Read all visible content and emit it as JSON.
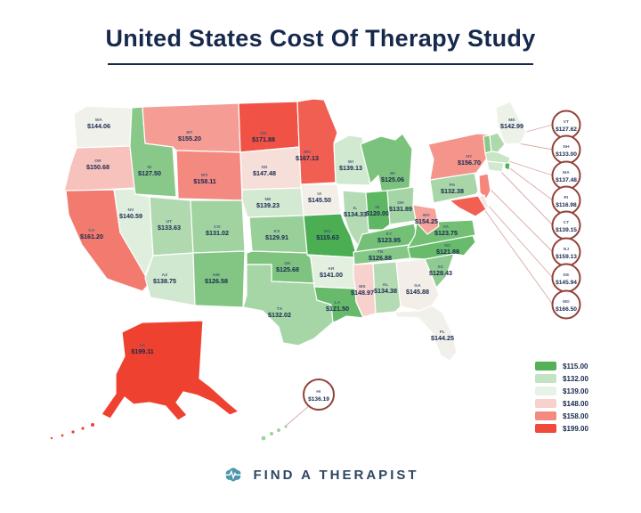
{
  "title": "United States Cost Of Therapy Study",
  "footer": {
    "brand": "FIND A THERAPIST"
  },
  "legend": {
    "items": [
      {
        "label": "$115.00",
        "color": "#55b158"
      },
      {
        "label": "$132.00",
        "color": "#c3e3c3"
      },
      {
        "label": "$139.00",
        "color": "#e9f2e8"
      },
      {
        "label": "$148.00",
        "color": "#f8d0cc"
      },
      {
        "label": "$158.00",
        "color": "#f3897f"
      },
      {
        "label": "$199.00",
        "color": "#f04a3c"
      }
    ]
  },
  "map": {
    "circle_border_color": "#944038",
    "states": [
      {
        "abbr": "WA",
        "value": "$144.06",
        "fill": "#f1f1eb"
      },
      {
        "abbr": "OR",
        "value": "$150.68",
        "fill": "#f7c2bc"
      },
      {
        "abbr": "CA",
        "value": "$161.20",
        "fill": "#f37a6f"
      },
      {
        "abbr": "NV",
        "value": "$140.59",
        "fill": "#e0efdd"
      },
      {
        "abbr": "ID",
        "value": "$127.50",
        "fill": "#88c989"
      },
      {
        "abbr": "MT",
        "value": "$155.20",
        "fill": "#f59d95"
      },
      {
        "abbr": "WY",
        "value": "$158.11",
        "fill": "#f48980"
      },
      {
        "abbr": "UT",
        "value": "$133.63",
        "fill": "#b0d9af"
      },
      {
        "abbr": "CO",
        "value": "$131.02",
        "fill": "#a0d3a0"
      },
      {
        "abbr": "AZ",
        "value": "$138.75",
        "fill": "#d0e8cf"
      },
      {
        "abbr": "NM",
        "value": "$126.58",
        "fill": "#83c684"
      },
      {
        "abbr": "ND",
        "value": "$171.88",
        "fill": "#f05246"
      },
      {
        "abbr": "SD",
        "value": "$147.48",
        "fill": "#f6ded9"
      },
      {
        "abbr": "NE",
        "value": "$139.23",
        "fill": "#d3e9d2"
      },
      {
        "abbr": "KS",
        "value": "$129.91",
        "fill": "#99d099"
      },
      {
        "abbr": "OK",
        "value": "$125.68",
        "fill": "#7ec47f"
      },
      {
        "abbr": "TX",
        "value": "$132.02",
        "fill": "#a6d5a6"
      },
      {
        "abbr": "MN",
        "value": "$167.13",
        "fill": "#f15e52"
      },
      {
        "abbr": "IA",
        "value": "$145.50",
        "fill": "#f3efe8"
      },
      {
        "abbr": "MO",
        "value": "$115.63",
        "fill": "#4bae53"
      },
      {
        "abbr": "AR",
        "value": "$141.00",
        "fill": "#e3f0e0"
      },
      {
        "abbr": "LA",
        "value": "$121.50",
        "fill": "#66ba69"
      },
      {
        "abbr": "WI",
        "value": "$139.13",
        "fill": "#d2e9d1"
      },
      {
        "abbr": "MI",
        "value": "$125.06",
        "fill": "#7bc37d"
      },
      {
        "abbr": "IL",
        "value": "$134.33",
        "fill": "#b4dbb3"
      },
      {
        "abbr": "IN",
        "value": "$120.00",
        "fill": "#5eb763"
      },
      {
        "abbr": "OH",
        "value": "$131.89",
        "fill": "#a5d5a5"
      },
      {
        "abbr": "KY",
        "value": "$123.95",
        "fill": "#74c076"
      },
      {
        "abbr": "TN",
        "value": "$126.88",
        "fill": "#85c786"
      },
      {
        "abbr": "MS",
        "value": "$148.97",
        "fill": "#f8d1cd"
      },
      {
        "abbr": "AL",
        "value": "$134.38",
        "fill": "#b4dbb3"
      },
      {
        "abbr": "GA",
        "value": "$145.88",
        "fill": "#f3eee7"
      },
      {
        "abbr": "FL",
        "value": "$144.25",
        "fill": "#f1f0ea"
      },
      {
        "abbr": "SC",
        "value": "$128.43",
        "fill": "#8fcb90"
      },
      {
        "abbr": "NC",
        "value": "$121.88",
        "fill": "#67bb6a"
      },
      {
        "abbr": "VA",
        "value": "$123.75",
        "fill": "#73c075"
      },
      {
        "abbr": "WV",
        "value": "$154.25",
        "fill": "#f5a39b"
      },
      {
        "abbr": "PA",
        "value": "$132.38",
        "fill": "#a8d6a8"
      },
      {
        "abbr": "NY",
        "value": "$156.70",
        "fill": "#f4948b"
      },
      {
        "abbr": "ME",
        "value": "$142.99",
        "fill": "#edf2e8"
      },
      {
        "abbr": "AK",
        "value": "$199.11",
        "fill": "#ef4130"
      }
    ],
    "callouts": [
      {
        "abbr": "VT",
        "value": "$127.62",
        "fill": "#88c989"
      },
      {
        "abbr": "NH",
        "value": "$133.00",
        "fill": "#add9ac"
      },
      {
        "abbr": "MA",
        "value": "$137.48",
        "fill": "#c8e5c6"
      },
      {
        "abbr": "RI",
        "value": "$116.98",
        "fill": "#4fb057"
      },
      {
        "abbr": "CT",
        "value": "$139.15",
        "fill": "#d2e9d1"
      },
      {
        "abbr": "NJ",
        "value": "$159.13",
        "fill": "#f4867c"
      },
      {
        "abbr": "DE",
        "value": "$145.94",
        "fill": "#f3e9e3"
      },
      {
        "abbr": "MD",
        "value": "$166.50",
        "fill": "#f25f53"
      },
      {
        "abbr": "HI",
        "value": "$136.19",
        "fill": "#9dd49c"
      }
    ]
  },
  "chart_data": {
    "type": "heatmap",
    "subtype": "us-choropleth",
    "title": "United States Cost Of Therapy Study",
    "legend_breaks": [
      115.0,
      132.0,
      139.0,
      148.0,
      158.0,
      199.0
    ],
    "legend_colors": [
      "#55b158",
      "#c3e3c3",
      "#e9f2e8",
      "#f8d0cc",
      "#f3897f",
      "#f04a3c"
    ],
    "states": [
      {
        "state": "WA",
        "cost": 144.06
      },
      {
        "state": "OR",
        "cost": 150.68
      },
      {
        "state": "CA",
        "cost": 161.2
      },
      {
        "state": "NV",
        "cost": 140.59
      },
      {
        "state": "ID",
        "cost": 127.5
      },
      {
        "state": "MT",
        "cost": 155.2
      },
      {
        "state": "WY",
        "cost": 158.11
      },
      {
        "state": "UT",
        "cost": 133.63
      },
      {
        "state": "CO",
        "cost": 131.02
      },
      {
        "state": "AZ",
        "cost": 138.75
      },
      {
        "state": "NM",
        "cost": 126.58
      },
      {
        "state": "ND",
        "cost": 171.88
      },
      {
        "state": "SD",
        "cost": 147.48
      },
      {
        "state": "NE",
        "cost": 139.23
      },
      {
        "state": "KS",
        "cost": 129.91
      },
      {
        "state": "OK",
        "cost": 125.68
      },
      {
        "state": "TX",
        "cost": 132.02
      },
      {
        "state": "MN",
        "cost": 167.13
      },
      {
        "state": "IA",
        "cost": 145.5
      },
      {
        "state": "MO",
        "cost": 115.63
      },
      {
        "state": "AR",
        "cost": 141.0
      },
      {
        "state": "LA",
        "cost": 121.5
      },
      {
        "state": "WI",
        "cost": 139.13
      },
      {
        "state": "MI",
        "cost": 125.06
      },
      {
        "state": "IL",
        "cost": 134.33
      },
      {
        "state": "IN",
        "cost": 120.0
      },
      {
        "state": "OH",
        "cost": 131.89
      },
      {
        "state": "KY",
        "cost": 123.95
      },
      {
        "state": "TN",
        "cost": 126.88
      },
      {
        "state": "MS",
        "cost": 148.97
      },
      {
        "state": "AL",
        "cost": 134.38
      },
      {
        "state": "GA",
        "cost": 145.88
      },
      {
        "state": "FL",
        "cost": 144.25
      },
      {
        "state": "SC",
        "cost": 128.43
      },
      {
        "state": "NC",
        "cost": 121.88
      },
      {
        "state": "VA",
        "cost": 123.75
      },
      {
        "state": "WV",
        "cost": 154.25
      },
      {
        "state": "PA",
        "cost": 132.38
      },
      {
        "state": "NY",
        "cost": 156.7
      },
      {
        "state": "ME",
        "cost": 142.99
      },
      {
        "state": "AK",
        "cost": 199.11
      },
      {
        "state": "VT",
        "cost": 127.62
      },
      {
        "state": "NH",
        "cost": 133.0
      },
      {
        "state": "MA",
        "cost": 137.48
      },
      {
        "state": "RI",
        "cost": 116.98
      },
      {
        "state": "CT",
        "cost": 139.15
      },
      {
        "state": "NJ",
        "cost": 159.13
      },
      {
        "state": "DE",
        "cost": 145.94
      },
      {
        "state": "MD",
        "cost": 166.5
      },
      {
        "state": "HI",
        "cost": 136.19
      }
    ]
  }
}
